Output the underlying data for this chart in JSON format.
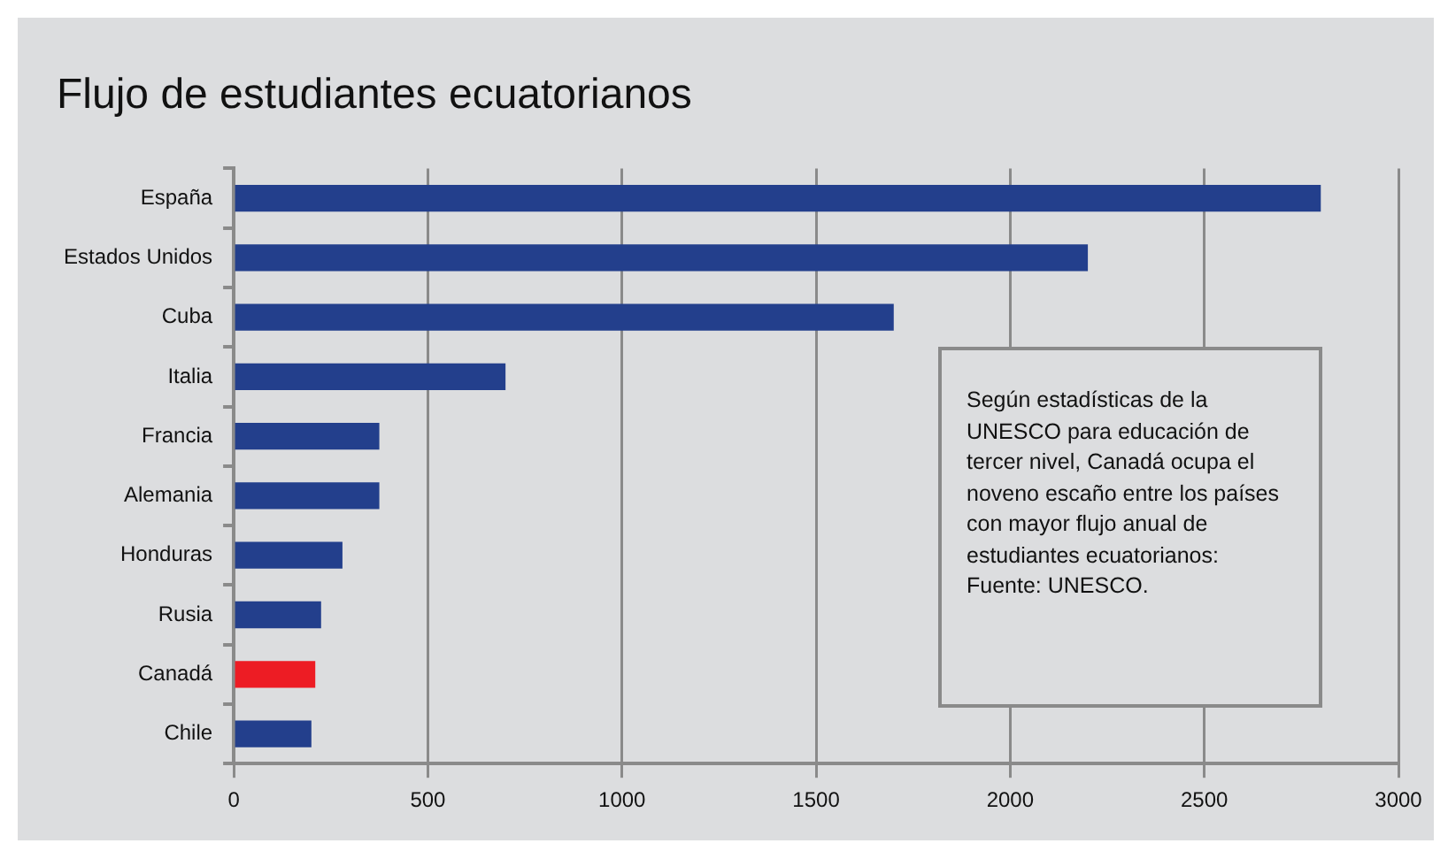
{
  "chart_data": {
    "type": "bar",
    "orientation": "horizontal",
    "title": "Flujo de estudiantes ecuatorianos",
    "categories": [
      "España",
      "Estados Unidos",
      "Cuba",
      "Italia",
      "Francia",
      "Alemania",
      "Honduras",
      "Rusia",
      "Canadá",
      "Chile"
    ],
    "values": [
      2800,
      2200,
      1700,
      700,
      375,
      375,
      280,
      225,
      210,
      200
    ],
    "colors": [
      "#233f8c",
      "#233f8c",
      "#233f8c",
      "#233f8c",
      "#233f8c",
      "#233f8c",
      "#233f8c",
      "#233f8c",
      "#ed1c24",
      "#233f8c"
    ],
    "xlim": [
      0,
      3000
    ],
    "xticks": [
      0,
      500,
      1000,
      1500,
      2000,
      2500,
      3000
    ],
    "grid": "x",
    "legend": false,
    "annotations": [
      "Según estadísticas de la UNESCO para educación de tercer nivel, Canadá ocupa el noveno escaño entre los países con mayor flujo anual de estudiantes ecuatorianos: Fuente: UNESCO."
    ]
  }
}
